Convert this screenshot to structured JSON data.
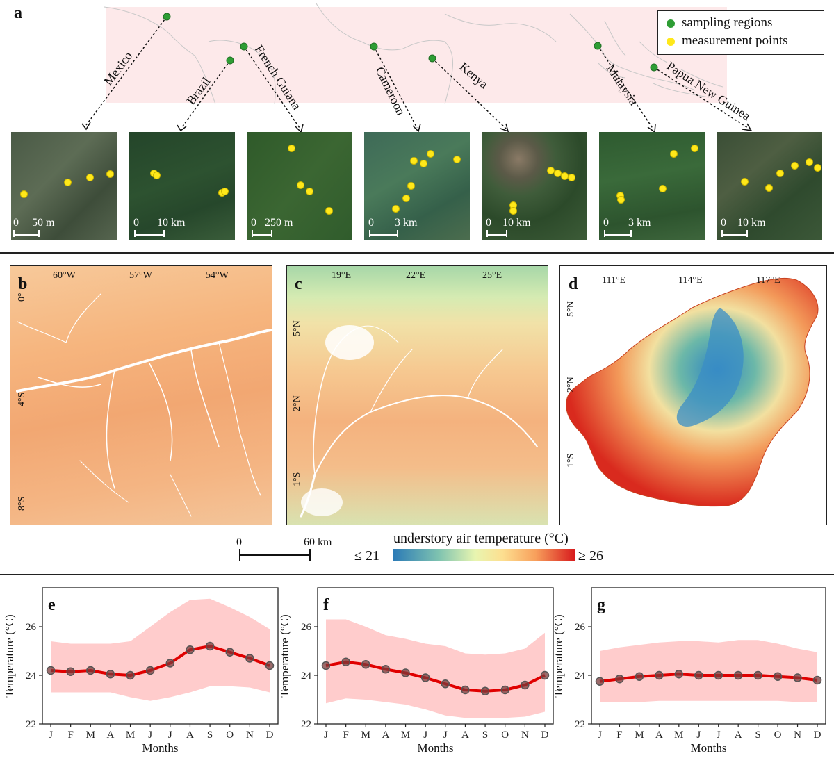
{
  "panel_a": {
    "label": "a",
    "legend": {
      "sampling": "sampling regions",
      "measurement": "measurement points",
      "sampling_color": "#2e9d34",
      "measurement_color": "#ffe81a"
    },
    "regions": [
      "Mexico",
      "Brazil",
      "French Guiana",
      "Cameroon",
      "Kenya",
      "Malaysia",
      "Papua New Guinea"
    ],
    "scales": [
      {
        "zero": "0",
        "dist": "50 m"
      },
      {
        "zero": "0",
        "dist": "10 km"
      },
      {
        "zero": "0",
        "dist": "250 m"
      },
      {
        "zero": "0",
        "dist": "3 km"
      },
      {
        "zero": "0",
        "dist": "10 km"
      },
      {
        "zero": "0",
        "dist": "3 km"
      },
      {
        "zero": "0",
        "dist": "10 km"
      }
    ]
  },
  "panel_b": {
    "label": "b",
    "x_ticks": [
      "60°W",
      "57°W",
      "54°W"
    ],
    "y_ticks": [
      "0°",
      "4°S",
      "8°S"
    ]
  },
  "panel_c": {
    "label": "c",
    "x_ticks": [
      "19°E",
      "22°E",
      "25°E"
    ],
    "y_ticks": [
      "5°N",
      "2°N",
      "1°S"
    ]
  },
  "panel_d": {
    "label": "d",
    "x_ticks": [
      "111°E",
      "114°E",
      "117°E"
    ],
    "y_ticks": [
      "5°N",
      "2°N",
      "1°S"
    ]
  },
  "scalebar": {
    "zero": "0",
    "dist": "60 km"
  },
  "colorbar": {
    "title": "understory air temperature (°C)",
    "min": "≤ 21",
    "max": "≥ 26"
  },
  "chart_data": [
    {
      "type": "line",
      "panel": "e",
      "xlabel": "Months",
      "ylabel": "Temperature (°C)",
      "categories": [
        "J",
        "F",
        "M",
        "A",
        "M",
        "J",
        "J",
        "A",
        "S",
        "O",
        "N",
        "D"
      ],
      "ylim": [
        22,
        27.6
      ],
      "yticks": [
        22,
        24,
        26
      ],
      "series": [
        {
          "values": [
            24.2,
            24.15,
            24.2,
            24.05,
            24.0,
            24.2,
            24.5,
            25.05,
            25.2,
            24.95,
            24.7,
            24.4
          ]
        }
      ],
      "band_upper": [
        25.4,
        25.3,
        25.3,
        25.3,
        25.4,
        26.0,
        26.6,
        27.1,
        27.15,
        26.8,
        26.4,
        25.9
      ],
      "band_lower": [
        23.3,
        23.3,
        23.3,
        23.3,
        23.1,
        22.95,
        23.1,
        23.3,
        23.55,
        23.55,
        23.5,
        23.3
      ],
      "line_color": "#e00000",
      "band_color": "#ffcccc"
    },
    {
      "type": "line",
      "panel": "f",
      "xlabel": "Months",
      "ylabel": "Temperature (°C)",
      "categories": [
        "J",
        "F",
        "M",
        "A",
        "M",
        "J",
        "J",
        "A",
        "S",
        "O",
        "N",
        "D"
      ],
      "ylim": [
        22,
        27.6
      ],
      "yticks": [
        22,
        24,
        26
      ],
      "series": [
        {
          "values": [
            24.4,
            24.55,
            24.45,
            24.25,
            24.1,
            23.9,
            23.65,
            23.4,
            23.35,
            23.4,
            23.6,
            24.0
          ]
        }
      ],
      "band_upper": [
        26.3,
        26.3,
        26.0,
        25.65,
        25.5,
        25.3,
        25.2,
        24.9,
        24.85,
        24.9,
        25.1,
        25.75
      ],
      "band_lower": [
        22.85,
        23.05,
        23.0,
        22.9,
        22.8,
        22.6,
        22.35,
        22.25,
        22.25,
        22.25,
        22.3,
        22.5
      ],
      "line_color": "#e00000",
      "band_color": "#ffcccc"
    },
    {
      "type": "line",
      "panel": "g",
      "xlabel": "Months",
      "ylabel": "Temperature (°C)",
      "categories": [
        "J",
        "F",
        "M",
        "A",
        "M",
        "J",
        "J",
        "A",
        "S",
        "O",
        "N",
        "D"
      ],
      "ylim": [
        22,
        27.6
      ],
      "yticks": [
        22,
        24,
        26
      ],
      "series": [
        {
          "values": [
            23.75,
            23.85,
            23.95,
            24.0,
            24.05,
            24.0,
            24.0,
            24.0,
            24.0,
            23.95,
            23.9,
            23.8
          ]
        }
      ],
      "band_upper": [
        25.0,
        25.15,
        25.25,
        25.35,
        25.4,
        25.4,
        25.35,
        25.45,
        25.45,
        25.3,
        25.1,
        24.95
      ],
      "band_lower": [
        22.9,
        22.9,
        22.9,
        22.95,
        22.95,
        22.95,
        22.95,
        22.95,
        22.95,
        22.95,
        22.9,
        22.9
      ],
      "line_color": "#e00000",
      "band_color": "#ffcccc"
    }
  ]
}
